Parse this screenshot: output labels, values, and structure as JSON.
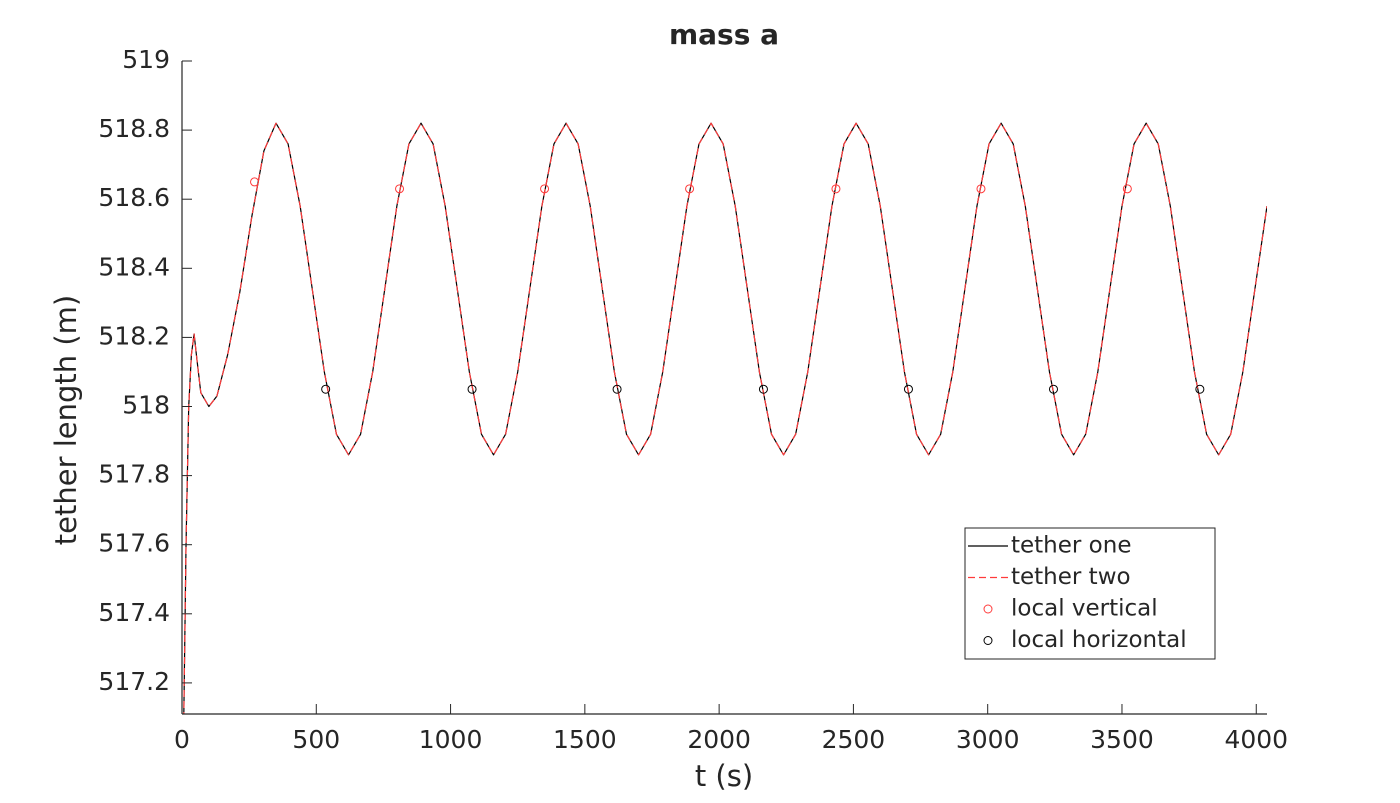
{
  "chart_data": {
    "type": "line",
    "title": "mass a",
    "xlabel": "t (s)",
    "ylabel": "tether length (m)",
    "xlim": [
      0,
      4040
    ],
    "ylim": [
      517.11,
      519
    ],
    "xticks": [
      0,
      500,
      1000,
      1500,
      2000,
      2500,
      3000,
      3500,
      4000
    ],
    "yticks": [
      517.2,
      517.4,
      517.6,
      517.8,
      518,
      518.2,
      518.4,
      518.6,
      518.8,
      519
    ],
    "legend": "lower right",
    "x": [
      5,
      15,
      25,
      35,
      45,
      55,
      70,
      100,
      130,
      170,
      215,
      260,
      305,
      350,
      395,
      440,
      485,
      530,
      575,
      620,
      665,
      710,
      755,
      800,
      845,
      890,
      935,
      980,
      1025,
      1070,
      1115,
      1160,
      1205,
      1250,
      1295,
      1340,
      1385,
      1430,
      1475,
      1520,
      1565,
      1610,
      1655,
      1700,
      1745,
      1790,
      1835,
      1880,
      1925,
      1970,
      2015,
      2060,
      2105,
      2150,
      2195,
      2240,
      2285,
      2330,
      2375,
      2420,
      2465,
      2510,
      2555,
      2600,
      2645,
      2690,
      2735,
      2780,
      2825,
      2870,
      2915,
      2960,
      3005,
      3050,
      3095,
      3140,
      3185,
      3230,
      3275,
      3320,
      3365,
      3410,
      3455,
      3500,
      3545,
      3590,
      3635,
      3680,
      3725,
      3770,
      3815,
      3860,
      3905,
      3950,
      3995,
      4040
    ],
    "series": [
      {
        "name": "tether one",
        "color": "#000000",
        "style": "solid",
        "values": [
          517.0,
          517.6,
          518.0,
          518.15,
          518.21,
          518.14,
          518.04,
          518.0,
          518.03,
          518.15,
          518.33,
          518.55,
          518.74,
          518.82,
          518.76,
          518.58,
          518.34,
          518.1,
          517.92,
          517.86,
          517.92,
          518.1,
          518.34,
          518.58,
          518.76,
          518.82,
          518.76,
          518.58,
          518.34,
          518.1,
          517.92,
          517.86,
          517.92,
          518.1,
          518.34,
          518.58,
          518.76,
          518.82,
          518.76,
          518.58,
          518.34,
          518.1,
          517.92,
          517.86,
          517.92,
          518.1,
          518.34,
          518.58,
          518.76,
          518.82,
          518.76,
          518.58,
          518.34,
          518.1,
          517.92,
          517.86,
          517.92,
          518.1,
          518.34,
          518.58,
          518.76,
          518.82,
          518.76,
          518.58,
          518.34,
          518.1,
          517.92,
          517.86,
          517.92,
          518.1,
          518.34,
          518.58,
          518.76,
          518.82,
          518.76,
          518.58,
          518.34,
          518.1,
          517.92,
          517.86,
          517.92,
          518.1,
          518.34,
          518.58,
          518.76,
          518.82,
          518.76,
          518.58,
          518.34,
          518.1,
          517.92,
          517.86,
          517.92,
          518.1,
          518.34,
          518.58
        ]
      },
      {
        "name": "tether two",
        "color": "#ff3b3b",
        "style": "dashed",
        "values": [
          517.0,
          517.6,
          518.0,
          518.15,
          518.21,
          518.14,
          518.04,
          518.0,
          518.03,
          518.15,
          518.33,
          518.55,
          518.74,
          518.82,
          518.76,
          518.58,
          518.34,
          518.1,
          517.92,
          517.86,
          517.92,
          518.1,
          518.34,
          518.58,
          518.76,
          518.82,
          518.76,
          518.58,
          518.34,
          518.1,
          517.92,
          517.86,
          517.92,
          518.1,
          518.34,
          518.58,
          518.76,
          518.82,
          518.76,
          518.58,
          518.34,
          518.1,
          517.92,
          517.86,
          517.92,
          518.1,
          518.34,
          518.58,
          518.76,
          518.82,
          518.76,
          518.58,
          518.34,
          518.1,
          517.92,
          517.86,
          517.92,
          518.1,
          518.34,
          518.58,
          518.76,
          518.82,
          518.76,
          518.58,
          518.34,
          518.1,
          517.92,
          517.86,
          517.92,
          518.1,
          518.34,
          518.58,
          518.76,
          518.82,
          518.76,
          518.58,
          518.34,
          518.1,
          517.92,
          517.86,
          517.92,
          518.1,
          518.34,
          518.58,
          518.76,
          518.82,
          518.76,
          518.58,
          518.34,
          518.1,
          517.92,
          517.86,
          517.92,
          518.1,
          518.34,
          518.58
        ]
      },
      {
        "name": "local vertical",
        "color": "#ff3b3b",
        "style": "marker",
        "x": [
          270,
          810,
          1350,
          1890,
          2435,
          2975,
          3520
        ],
        "values": [
          518.65,
          518.63,
          518.63,
          518.63,
          518.63,
          518.63,
          518.63
        ]
      },
      {
        "name": "local horizontal",
        "color": "#000000",
        "style": "marker",
        "x": [
          535,
          1080,
          1620,
          2165,
          2705,
          3245,
          3790
        ],
        "values": [
          518.05,
          518.05,
          518.05,
          518.05,
          518.05,
          518.05,
          518.05
        ]
      }
    ]
  }
}
